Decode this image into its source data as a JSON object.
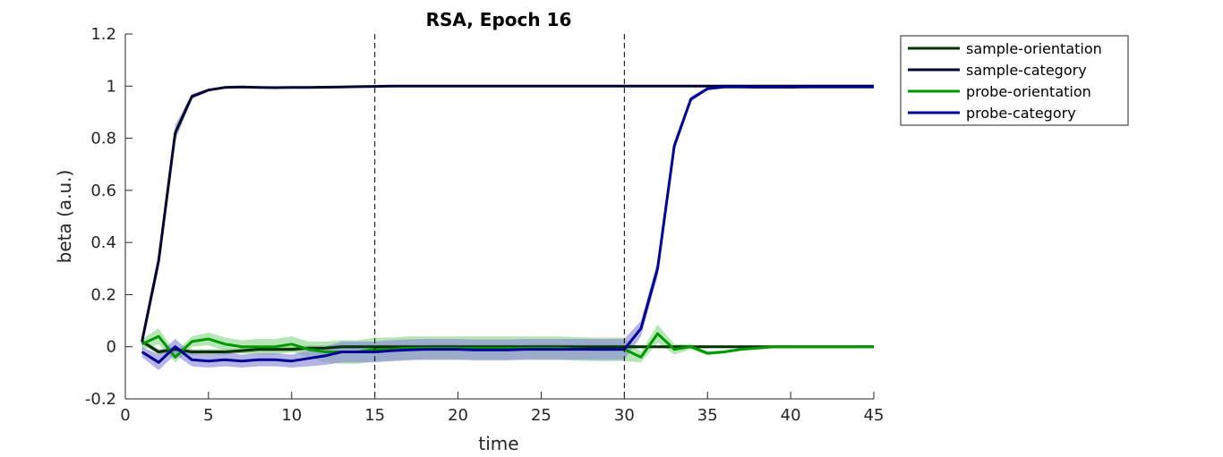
{
  "chart_data": {
    "type": "line",
    "title": "RSA, Epoch 16",
    "xlabel": "time",
    "ylabel": "beta (a.u.)",
    "xlim": [
      0,
      45
    ],
    "ylim": [
      -0.2,
      1.2
    ],
    "x_ticks": [
      0,
      5,
      10,
      15,
      20,
      25,
      30,
      35,
      40,
      45
    ],
    "y_ticks": [
      -0.2,
      0,
      0.2,
      0.4,
      0.6,
      0.8,
      1,
      1.2
    ],
    "x_tick_labels": [
      "0",
      "5",
      "10",
      "15",
      "20",
      "25",
      "30",
      "35",
      "40",
      "45"
    ],
    "y_tick_labels": [
      "-0.2",
      "0",
      "0.2",
      "0.4",
      "0.6",
      "0.8",
      "1",
      "1.2"
    ],
    "vlines": [
      15,
      30
    ],
    "legend_position": "outside-top-right",
    "grid": false,
    "x": [
      1,
      2,
      3,
      4,
      5,
      6,
      7,
      8,
      9,
      10,
      11,
      12,
      13,
      14,
      15,
      16,
      17,
      18,
      19,
      20,
      21,
      22,
      23,
      24,
      25,
      26,
      27,
      28,
      29,
      30,
      31,
      32,
      33,
      34,
      35,
      36,
      37,
      38,
      39,
      40,
      41,
      42,
      43,
      44,
      45
    ],
    "series": [
      {
        "name": "sample-orientation",
        "color": "#003300",
        "band_color": "#7a917a",
        "values": [
          0.02,
          -0.02,
          -0.01,
          -0.02,
          -0.02,
          -0.02,
          -0.015,
          -0.01,
          -0.01,
          -0.01,
          -0.005,
          -0.005,
          0,
          0,
          0,
          0,
          0,
          0,
          0,
          0,
          0,
          0,
          0,
          0,
          0,
          0,
          0,
          0,
          0,
          0,
          0,
          0,
          0,
          0,
          0,
          0,
          0,
          0,
          0,
          0,
          0,
          0,
          0,
          0,
          0
        ],
        "band": [
          0.01,
          0.01,
          0.01,
          0.01,
          0.01,
          0.01,
          0.01,
          0.01,
          0.01,
          0.01,
          0.01,
          0.01,
          0.01,
          0.01,
          0.01,
          0.01,
          0.01,
          0.01,
          0.01,
          0.01,
          0.01,
          0.01,
          0.01,
          0.01,
          0.01,
          0.01,
          0.01,
          0.01,
          0.01,
          0.01,
          0.005,
          0.005,
          0.005,
          0.005,
          0.005,
          0.005,
          0.005,
          0.005,
          0.005,
          0.005,
          0.005,
          0.005,
          0.005,
          0.005,
          0.005
        ]
      },
      {
        "name": "sample-category",
        "color": "#000033",
        "band_color": "#8a8aa6",
        "values": [
          0.02,
          0.33,
          0.82,
          0.96,
          0.985,
          0.995,
          0.997,
          0.995,
          0.994,
          0.995,
          0.995,
          0.996,
          0.997,
          0.998,
          0.999,
          1,
          1,
          1,
          1,
          1,
          1,
          1,
          1,
          1,
          1,
          1,
          1,
          1,
          1,
          1,
          1,
          1,
          1,
          1,
          1,
          1,
          1,
          1,
          1,
          1,
          1,
          1,
          1,
          1,
          1
        ],
        "band": [
          0.02,
          0.03,
          0.03,
          0.01,
          0.005,
          0.004,
          0.003,
          0.003,
          0.003,
          0.003,
          0.003,
          0.003,
          0.003,
          0.003,
          0.002,
          0.002,
          0.002,
          0.002,
          0.002,
          0.002,
          0.002,
          0.002,
          0.002,
          0.002,
          0.002,
          0.002,
          0.002,
          0.002,
          0.002,
          0.002,
          0.002,
          0.002,
          0.002,
          0.002,
          0.002,
          0.002,
          0.002,
          0.002,
          0.002,
          0.002,
          0.002,
          0.002,
          0.002,
          0.002,
          0.002
        ]
      },
      {
        "name": "probe-orientation",
        "color": "#009900",
        "band_color": "#8fd88f",
        "values": [
          0.01,
          0.04,
          -0.04,
          0.02,
          0.03,
          0.01,
          0,
          0,
          0,
          0.01,
          -0.01,
          -0.02,
          -0.02,
          -0.02,
          -0.01,
          -0.01,
          -0.005,
          -0.005,
          -0.005,
          -0.005,
          -0.005,
          -0.005,
          -0.005,
          -0.005,
          -0.005,
          -0.005,
          -0.008,
          -0.01,
          -0.01,
          -0.01,
          -0.04,
          0.05,
          -0.01,
          0,
          -0.025,
          -0.02,
          -0.01,
          -0.005,
          0,
          0,
          0,
          0,
          0,
          0,
          0
        ],
        "band": [
          0.02,
          0.03,
          0.02,
          0.02,
          0.025,
          0.025,
          0.025,
          0.03,
          0.03,
          0.03,
          0.03,
          0.04,
          0.045,
          0.045,
          0.045,
          0.045,
          0.045,
          0.045,
          0.045,
          0.045,
          0.045,
          0.045,
          0.045,
          0.045,
          0.045,
          0.045,
          0.045,
          0.045,
          0.045,
          0.045,
          0.02,
          0.035,
          0.02,
          0.01,
          0.008,
          0.006,
          0.005,
          0.004,
          0.003,
          0.003,
          0.003,
          0.003,
          0.003,
          0.003,
          0.003
        ]
      },
      {
        "name": "probe-category",
        "color": "#000099",
        "band_color": "#8c8cd9",
        "values": [
          -0.02,
          -0.06,
          0,
          -0.05,
          -0.055,
          -0.05,
          -0.055,
          -0.05,
          -0.05,
          -0.055,
          -0.045,
          -0.035,
          -0.02,
          -0.02,
          -0.02,
          -0.015,
          -0.012,
          -0.01,
          -0.01,
          -0.01,
          -0.012,
          -0.012,
          -0.012,
          -0.01,
          -0.01,
          -0.01,
          -0.01,
          -0.01,
          -0.01,
          -0.01,
          0.07,
          0.3,
          0.77,
          0.95,
          0.99,
          0.997,
          0.997,
          0.996,
          0.996,
          0.996,
          0.997,
          0.997,
          0.997,
          0.997,
          0.997
        ],
        "band": [
          0.02,
          0.03,
          0.03,
          0.025,
          0.025,
          0.025,
          0.025,
          0.025,
          0.025,
          0.025,
          0.03,
          0.035,
          0.04,
          0.04,
          0.04,
          0.04,
          0.04,
          0.04,
          0.04,
          0.04,
          0.04,
          0.04,
          0.04,
          0.04,
          0.04,
          0.04,
          0.04,
          0.04,
          0.04,
          0.04,
          0.03,
          0.03,
          0.02,
          0.01,
          0.005,
          0.003,
          0.003,
          0.003,
          0.003,
          0.003,
          0.003,
          0.003,
          0.003,
          0.003,
          0.003
        ]
      }
    ]
  }
}
